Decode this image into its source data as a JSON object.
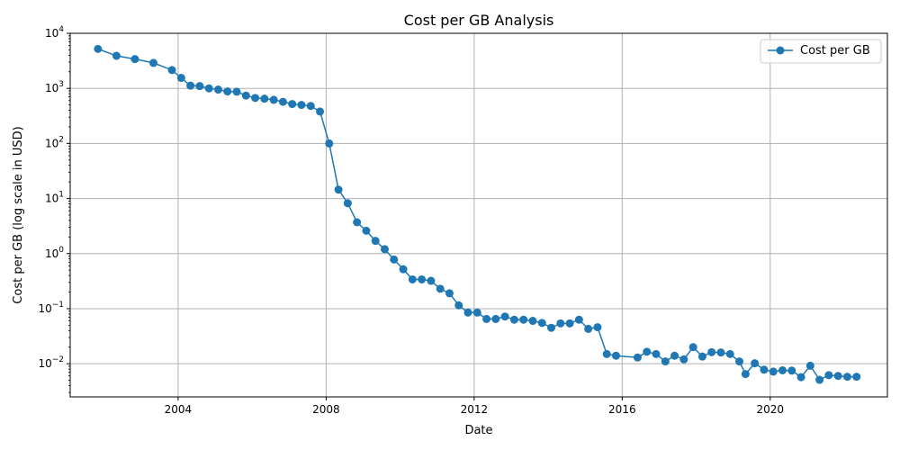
{
  "chart_data": {
    "type": "line",
    "title": "Cost per GB Analysis",
    "xlabel": "Date",
    "ylabel": "Cost per GB (log scale in USD)",
    "yscale": "log",
    "xlim": [
      "2001-02-01",
      "2023-03-01"
    ],
    "ylim": [
      0.0025,
      10000
    ],
    "xticks": [
      "2004",
      "2008",
      "2012",
      "2016",
      "2020"
    ],
    "grid": true,
    "legend": "top-right",
    "color": "#1f77b4",
    "series": [
      {
        "name": "Cost per GB",
        "x": [
          "2001-11",
          "2002-05",
          "2002-11",
          "2003-05",
          "2003-11",
          "2004-02",
          "2004-05",
          "2004-08",
          "2004-11",
          "2005-02",
          "2005-05",
          "2005-08",
          "2005-11",
          "2006-02",
          "2006-05",
          "2006-08",
          "2006-11",
          "2007-02",
          "2007-05",
          "2007-08",
          "2007-11",
          "2008-02",
          "2008-05",
          "2008-08",
          "2008-11",
          "2009-02",
          "2009-05",
          "2009-08",
          "2009-11",
          "2010-02",
          "2010-05",
          "2010-08",
          "2010-11",
          "2011-02",
          "2011-05",
          "2011-08",
          "2011-11",
          "2012-02",
          "2012-05",
          "2012-08",
          "2012-11",
          "2013-02",
          "2013-05",
          "2013-08",
          "2013-11",
          "2014-02",
          "2014-05",
          "2014-08",
          "2014-11",
          "2015-02",
          "2015-05",
          "2015-08",
          "2015-11",
          "2016-06",
          "2016-09",
          "2016-12",
          "2017-03",
          "2017-06",
          "2017-09",
          "2017-12",
          "2018-03",
          "2018-06",
          "2018-09",
          "2018-12",
          "2019-03",
          "2019-05",
          "2019-08",
          "2019-11",
          "2020-02",
          "2020-05",
          "2020-08",
          "2020-11",
          "2021-02",
          "2021-05",
          "2021-08",
          "2021-11",
          "2022-02",
          "2022-05"
        ],
        "values": [
          5200,
          3900,
          3400,
          2900,
          2150,
          1550,
          1120,
          1100,
          1000,
          950,
          880,
          870,
          740,
          670,
          650,
          620,
          570,
          520,
          500,
          480,
          380,
          100,
          14.5,
          8.2,
          3.7,
          2.6,
          1.7,
          1.2,
          0.78,
          0.52,
          0.34,
          0.34,
          0.32,
          0.23,
          0.19,
          0.115,
          0.085,
          0.085,
          0.065,
          0.065,
          0.072,
          0.063,
          0.063,
          0.06,
          0.055,
          0.045,
          0.054,
          0.054,
          0.063,
          0.043,
          0.046,
          0.015,
          0.014,
          0.013,
          0.0165,
          0.015,
          0.011,
          0.014,
          0.012,
          0.02,
          0.0135,
          0.0162,
          0.016,
          0.015,
          0.011,
          0.0065,
          0.0102,
          0.0078,
          0.0072,
          0.0076,
          0.0075,
          0.0057,
          0.0092,
          0.0051,
          0.0062,
          0.006,
          0.0058,
          0.0058
        ]
      }
    ]
  }
}
